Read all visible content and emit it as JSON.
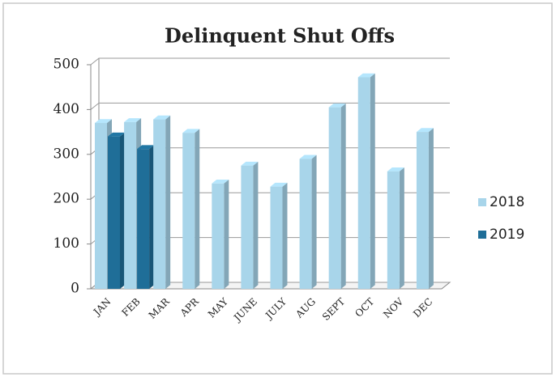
{
  "chart_data": {
    "type": "bar",
    "title": "Delinquent Shut Offs",
    "categories": [
      "JAN",
      "FEB",
      "MAR",
      "APR",
      "MAY",
      "JUNE",
      "JULY",
      "AUG",
      "SEPT",
      "OCT",
      "NOV",
      "DEC"
    ],
    "series": [
      {
        "name": "2018",
        "color": "#a8d5ea",
        "values": [
          370,
          372,
          378,
          348,
          235,
          275,
          228,
          290,
          405,
          472,
          262,
          350
        ]
      },
      {
        "name": "2019",
        "color": "#1f6e98",
        "values": [
          340,
          312,
          null,
          null,
          null,
          null,
          null,
          null,
          null,
          null,
          null,
          null
        ]
      }
    ],
    "ylim": [
      0,
      500
    ],
    "yticks": [
      0,
      100,
      200,
      300,
      400,
      500
    ],
    "grid": true,
    "legend": "right"
  }
}
